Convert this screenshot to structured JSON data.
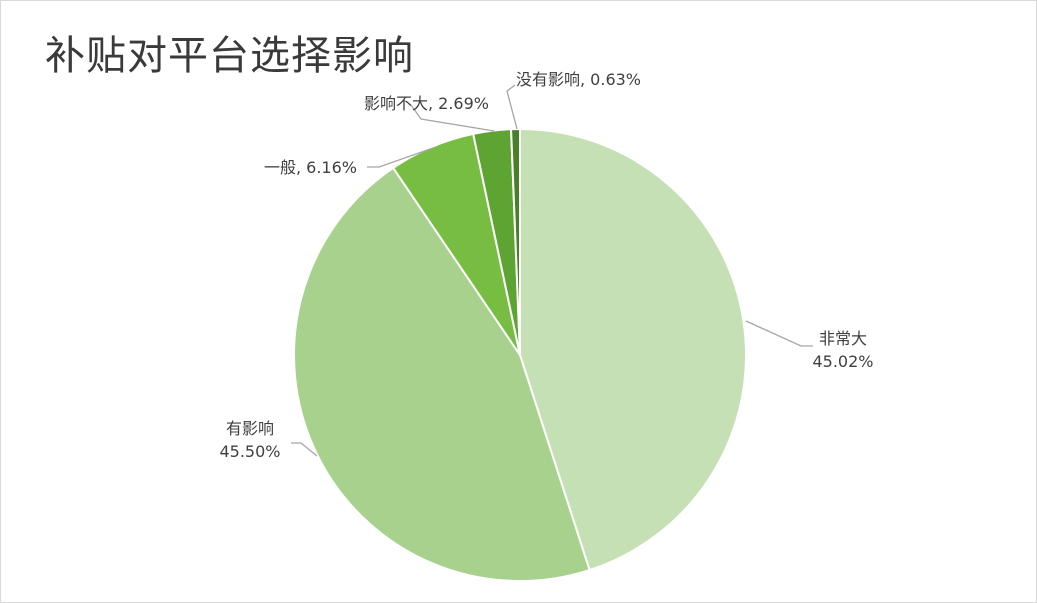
{
  "chart_data": {
    "type": "pie",
    "title": "补贴对平台选择影响",
    "slices": [
      {
        "label": "非常大",
        "value": 45.02,
        "value_text": "45.02%",
        "color": "#c5e0b4"
      },
      {
        "label": "有影响",
        "value": 45.5,
        "value_text": "45.50%",
        "color": "#a9d18e"
      },
      {
        "label": "一般",
        "value": 6.16,
        "value_text": "6.16%",
        "color": "#77bd42"
      },
      {
        "label": "影响不大",
        "value": 2.69,
        "value_text": "2.69%",
        "color": "#5ea433"
      },
      {
        "label": "没有影响",
        "value": 0.63,
        "value_text": "0.63%",
        "color": "#4a7f2a"
      }
    ],
    "legend": "none",
    "start_angle": "12 o'clock",
    "direction": "clockwise"
  }
}
